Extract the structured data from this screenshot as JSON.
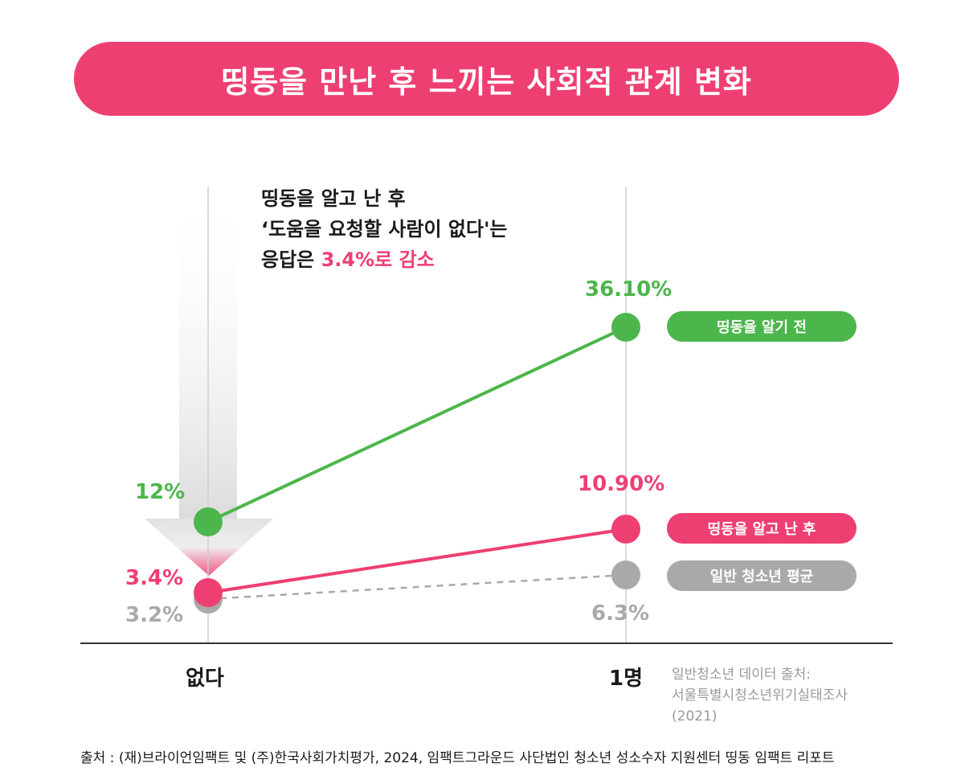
{
  "title": "띵동을 만난 후 느끼는 사회적 관계 변화",
  "annotation": {
    "line1": "띵동을 알고 난 후",
    "line2": "‘도움을 요청할 사람이 없다'는",
    "line3_prefix": "응답은 ",
    "line3_highlight": "3.4%로 감소"
  },
  "colors": {
    "title_bg": "#ee3f72",
    "before": "#4cb64c",
    "after": "#ee3f72",
    "average": "#a9a9a9",
    "axis": "#333333"
  },
  "chart_data": {
    "type": "line",
    "categories": [
      "없다",
      "1명"
    ],
    "series": [
      {
        "name": "띵동을 알기 전",
        "values": [
          12,
          36.1
        ],
        "labels": [
          "12%",
          "36.10%"
        ],
        "color": "#4cb64c",
        "dashed": false
      },
      {
        "name": "띵동을 알고 난 후",
        "values": [
          3.4,
          10.9
        ],
        "labels": [
          "3.4%",
          "10.90%"
        ],
        "color": "#ee3f72",
        "dashed": false
      },
      {
        "name": "일반 청소년 평균",
        "values": [
          3.2,
          6.3
        ],
        "labels": [
          "3.2%",
          "6.3%"
        ],
        "color": "#a9a9a9",
        "dashed": true
      }
    ],
    "legend_position": "right",
    "grid": false
  },
  "source_note": {
    "line1": "일반청소년 데이터 출처:",
    "line2": "서울특별시청소년위기실태조사",
    "line3": "(2021)"
  },
  "footer": "출처 : (재)브라이언임팩트 및 (주)한국사회가치평가, 2024, 임팩트그라운드 사단법인 청소년 성소수자 지원센터 띵동 임팩트 리포트"
}
